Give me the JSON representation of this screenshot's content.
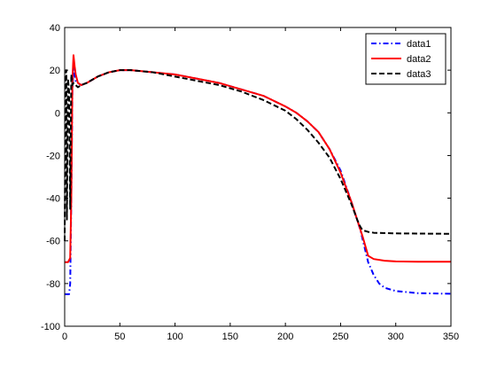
{
  "chart_data": {
    "type": "line",
    "title": "",
    "xlabel": "",
    "ylabel": "",
    "xlim": [
      0,
      350
    ],
    "ylim": [
      -100,
      40
    ],
    "xticks": [
      0,
      50,
      100,
      150,
      200,
      250,
      300,
      350
    ],
    "yticks": [
      -100,
      -80,
      -60,
      -40,
      -20,
      0,
      20,
      40
    ],
    "grid": false,
    "legend": "top-right",
    "series": [
      {
        "name": "data1",
        "color": "#0000ff",
        "dash": "dashdot",
        "x": [
          0,
          4,
          5,
          6,
          7,
          8,
          9,
          10,
          12,
          15,
          20,
          30,
          40,
          50,
          60,
          80,
          100,
          120,
          140,
          160,
          180,
          200,
          210,
          220,
          230,
          240,
          250,
          260,
          268,
          275,
          280,
          285,
          290,
          300,
          320,
          350
        ],
        "y": [
          -85,
          -85,
          -80,
          -40,
          10,
          22,
          17,
          15,
          14,
          13,
          14,
          17,
          19,
          20,
          20,
          19,
          18,
          16,
          14,
          11,
          8,
          3,
          0,
          -4,
          -9,
          -17,
          -27,
          -42,
          -55,
          -70,
          -76,
          -80,
          -82,
          -83.5,
          -84.5,
          -84.8
        ]
      },
      {
        "name": "data2",
        "color": "#ff0000",
        "dash": "solid",
        "x": [
          0,
          3,
          5,
          6,
          7,
          8,
          9,
          10,
          12,
          15,
          20,
          30,
          40,
          50,
          60,
          80,
          100,
          120,
          140,
          160,
          180,
          200,
          210,
          220,
          230,
          240,
          250,
          260,
          270,
          275,
          280,
          290,
          300,
          320,
          350
        ],
        "y": [
          -70,
          -70,
          -68,
          -40,
          15,
          27,
          22,
          18,
          14,
          13,
          14,
          17,
          19,
          20,
          20,
          19,
          18,
          16,
          14,
          11,
          8,
          3,
          0,
          -4,
          -9,
          -17,
          -28,
          -42,
          -58,
          -67,
          -68.5,
          -69.3,
          -69.6,
          -69.8,
          -69.8
        ]
      },
      {
        "name": "data3",
        "color": "#000000",
        "dash": "dashed",
        "x": [
          0,
          0.8,
          1.5,
          2,
          3,
          4,
          5,
          6,
          7,
          8,
          10,
          12,
          15,
          20,
          30,
          40,
          50,
          60,
          80,
          100,
          120,
          140,
          160,
          180,
          200,
          210,
          220,
          230,
          240,
          250,
          260,
          265,
          268,
          270,
          275,
          280,
          300,
          350
        ],
        "y": [
          -60,
          18,
          20,
          -50,
          16,
          10,
          -45,
          18,
          13,
          14,
          13,
          12,
          13,
          14,
          17,
          19,
          20,
          20,
          19,
          17,
          15,
          13,
          10,
          6,
          1,
          -3,
          -8,
          -14,
          -21,
          -31,
          -43,
          -50,
          -53.5,
          -55,
          -55.8,
          -56.2,
          -56.5,
          -56.7
        ]
      }
    ]
  }
}
